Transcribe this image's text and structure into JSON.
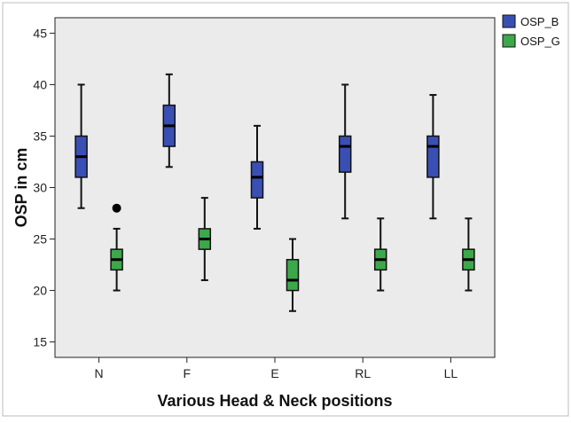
{
  "chart_data": {
    "type": "boxplot",
    "xlabel": "Various Head & Neck positions",
    "ylabel": "OSP in cm",
    "ylim": [
      13.5,
      46.5
    ],
    "yticks": [
      15,
      20,
      25,
      30,
      35,
      40,
      45
    ],
    "categories": [
      "N",
      "F",
      "E",
      "RL",
      "LL"
    ],
    "legend_position": "right",
    "grid": false,
    "series": [
      {
        "name": "OSP_B",
        "color": "#3a4fb4",
        "boxes": [
          {
            "min": 28,
            "q1": 31,
            "median": 33,
            "q3": 35,
            "max": 40
          },
          {
            "min": 32,
            "q1": 34,
            "median": 36,
            "q3": 38,
            "max": 41
          },
          {
            "min": 26,
            "q1": 29,
            "median": 31,
            "q3": 32.5,
            "max": 36
          },
          {
            "min": 27,
            "q1": 31.5,
            "median": 34,
            "q3": 35,
            "max": 40
          },
          {
            "min": 27,
            "q1": 31,
            "median": 34,
            "q3": 35,
            "max": 39
          }
        ]
      },
      {
        "name": "OSP_G",
        "color": "#3ca84a",
        "boxes": [
          {
            "min": 20,
            "q1": 22,
            "median": 23,
            "q3": 24,
            "max": 26,
            "outliers": [
              28
            ]
          },
          {
            "min": 21,
            "q1": 24,
            "median": 25,
            "q3": 26,
            "max": 29
          },
          {
            "min": 18,
            "q1": 20,
            "median": 21,
            "q3": 23,
            "max": 25
          },
          {
            "min": 20,
            "q1": 22,
            "median": 23,
            "q3": 24,
            "max": 27
          },
          {
            "min": 20,
            "q1": 22,
            "median": 23,
            "q3": 24,
            "max": 27
          }
        ]
      }
    ]
  }
}
